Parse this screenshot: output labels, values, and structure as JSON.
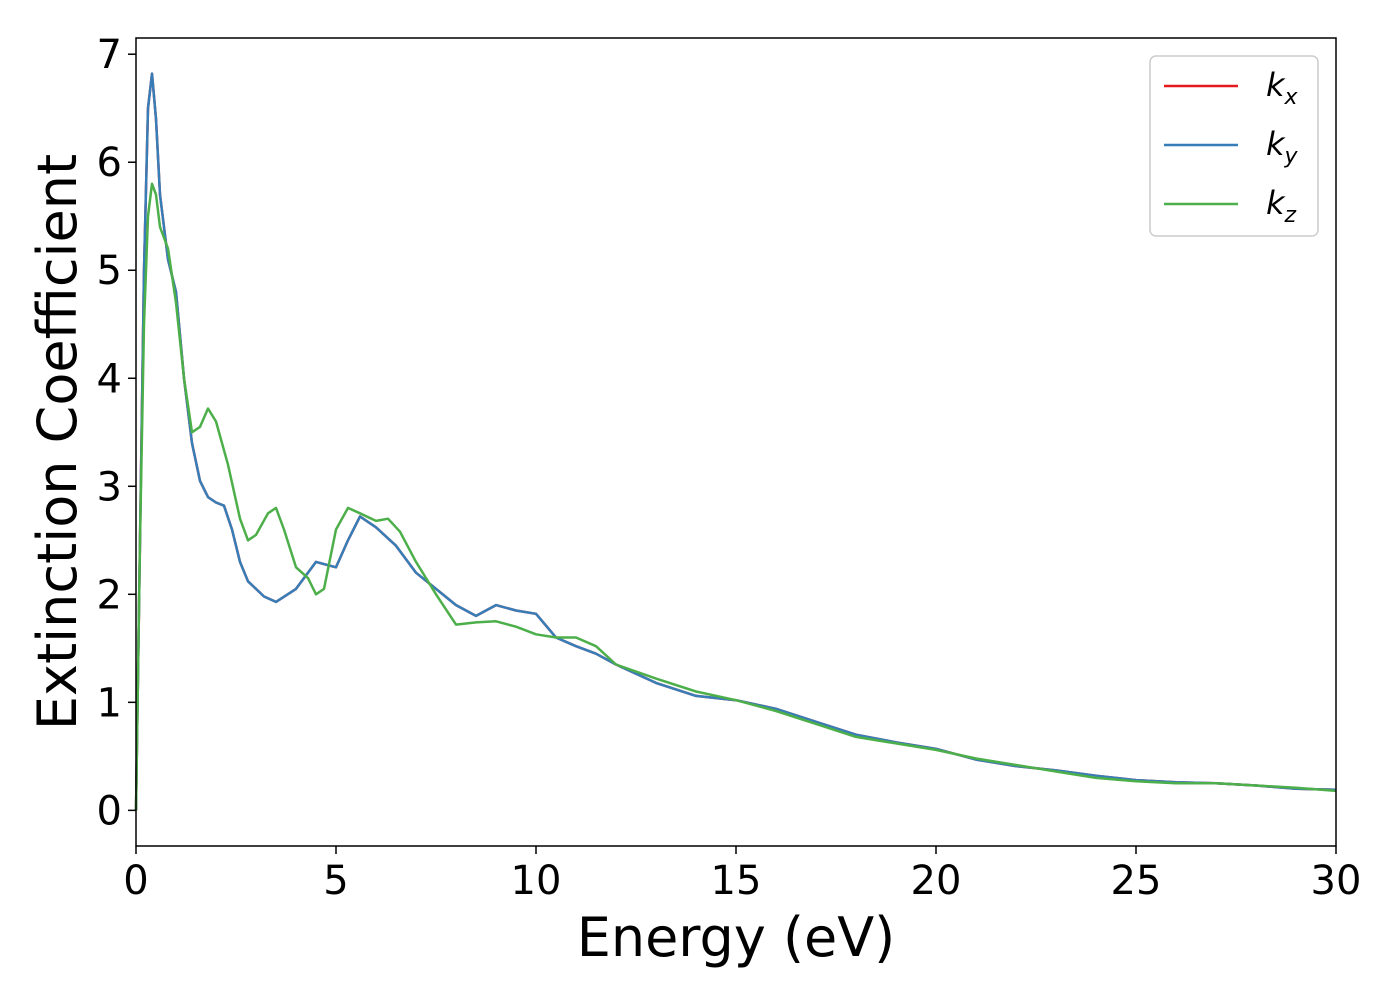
{
  "chart_data": {
    "type": "line",
    "xlabel": "Energy (eV)",
    "ylabel": "Extinction Coefficient",
    "xlim": [
      0,
      30
    ],
    "ylim": [
      -0.33,
      7.15
    ],
    "xticks": [
      "0",
      "5",
      "10",
      "15",
      "20",
      "25",
      "30"
    ],
    "yticks": [
      "0",
      "1",
      "2",
      "3",
      "4",
      "5",
      "6",
      "7"
    ],
    "grid": false,
    "legend_position": "top-right",
    "series": [
      {
        "name": "k",
        "subscript": "x",
        "color": "#e41a1c",
        "x": [
          0,
          0.1,
          0.2,
          0.3,
          0.4,
          0.5,
          0.6,
          0.8,
          1.0,
          1.2,
          1.4,
          1.6,
          1.8,
          2.0,
          2.2,
          2.4,
          2.6,
          2.8,
          3.0,
          3.2,
          3.5,
          4.0,
          4.5,
          5.0,
          5.3,
          5.6,
          6.0,
          6.5,
          7.0,
          7.5,
          8.0,
          8.5,
          9.0,
          9.5,
          10.0,
          10.5,
          11.0,
          11.5,
          12.0,
          13.0,
          14.0,
          15.0,
          16.0,
          17.0,
          18.0,
          19.0,
          20.0,
          21.0,
          22.0,
          23.0,
          24.0,
          25.0,
          26.0,
          27.0,
          28.0,
          29.0,
          30.0
        ],
        "y": [
          0,
          2.5,
          5.0,
          6.5,
          6.82,
          6.4,
          5.7,
          5.1,
          4.8,
          4.0,
          3.4,
          3.05,
          2.9,
          2.85,
          2.82,
          2.6,
          2.3,
          2.12,
          2.05,
          1.98,
          1.93,
          2.05,
          2.3,
          2.25,
          2.5,
          2.72,
          2.62,
          2.45,
          2.2,
          2.05,
          1.9,
          1.8,
          1.9,
          1.85,
          1.82,
          1.6,
          1.52,
          1.45,
          1.35,
          1.18,
          1.06,
          1.02,
          0.94,
          0.82,
          0.7,
          0.63,
          0.57,
          0.47,
          0.41,
          0.37,
          0.32,
          0.28,
          0.26,
          0.25,
          0.23,
          0.2,
          0.19
        ]
      },
      {
        "name": "k",
        "subscript": "y",
        "color": "#377eb8",
        "x": [
          0,
          0.1,
          0.2,
          0.3,
          0.4,
          0.5,
          0.6,
          0.8,
          1.0,
          1.2,
          1.4,
          1.6,
          1.8,
          2.0,
          2.2,
          2.4,
          2.6,
          2.8,
          3.0,
          3.2,
          3.5,
          4.0,
          4.5,
          5.0,
          5.3,
          5.6,
          6.0,
          6.5,
          7.0,
          7.5,
          8.0,
          8.5,
          9.0,
          9.5,
          10.0,
          10.5,
          11.0,
          11.5,
          12.0,
          13.0,
          14.0,
          15.0,
          16.0,
          17.0,
          18.0,
          19.0,
          20.0,
          21.0,
          22.0,
          23.0,
          24.0,
          25.0,
          26.0,
          27.0,
          28.0,
          29.0,
          30.0
        ],
        "y": [
          0,
          2.5,
          5.0,
          6.5,
          6.82,
          6.4,
          5.7,
          5.1,
          4.8,
          4.0,
          3.4,
          3.05,
          2.9,
          2.85,
          2.82,
          2.6,
          2.3,
          2.12,
          2.05,
          1.98,
          1.93,
          2.05,
          2.3,
          2.25,
          2.5,
          2.72,
          2.62,
          2.45,
          2.2,
          2.05,
          1.9,
          1.8,
          1.9,
          1.85,
          1.82,
          1.6,
          1.52,
          1.45,
          1.35,
          1.18,
          1.06,
          1.02,
          0.94,
          0.82,
          0.7,
          0.63,
          0.57,
          0.47,
          0.41,
          0.37,
          0.32,
          0.28,
          0.26,
          0.25,
          0.23,
          0.2,
          0.19
        ]
      },
      {
        "name": "k",
        "subscript": "z",
        "color": "#4daf4a",
        "x": [
          0,
          0.1,
          0.2,
          0.3,
          0.4,
          0.5,
          0.6,
          0.8,
          1.0,
          1.2,
          1.4,
          1.6,
          1.8,
          2.0,
          2.3,
          2.6,
          2.8,
          3.0,
          3.3,
          3.5,
          3.7,
          4.0,
          4.3,
          4.5,
          4.7,
          5.0,
          5.3,
          5.6,
          6.0,
          6.3,
          6.6,
          7.0,
          7.5,
          8.0,
          8.5,
          9.0,
          9.5,
          10.0,
          10.5,
          11.0,
          11.5,
          12.0,
          13.0,
          14.0,
          15.0,
          16.0,
          17.0,
          18.0,
          19.0,
          20.0,
          21.0,
          22.0,
          23.0,
          24.0,
          25.0,
          26.0,
          27.0,
          28.0,
          29.0,
          30.0
        ],
        "y": [
          0,
          2.5,
          4.5,
          5.5,
          5.8,
          5.7,
          5.4,
          5.2,
          4.7,
          4.0,
          3.5,
          3.55,
          3.72,
          3.6,
          3.2,
          2.7,
          2.5,
          2.55,
          2.75,
          2.8,
          2.6,
          2.25,
          2.15,
          2.0,
          2.05,
          2.6,
          2.8,
          2.75,
          2.68,
          2.7,
          2.58,
          2.3,
          2.0,
          1.72,
          1.74,
          1.75,
          1.7,
          1.63,
          1.6,
          1.6,
          1.52,
          1.35,
          1.22,
          1.1,
          1.02,
          0.92,
          0.8,
          0.68,
          0.62,
          0.56,
          0.48,
          0.42,
          0.36,
          0.3,
          0.27,
          0.25,
          0.25,
          0.23,
          0.21,
          0.18
        ]
      }
    ]
  }
}
